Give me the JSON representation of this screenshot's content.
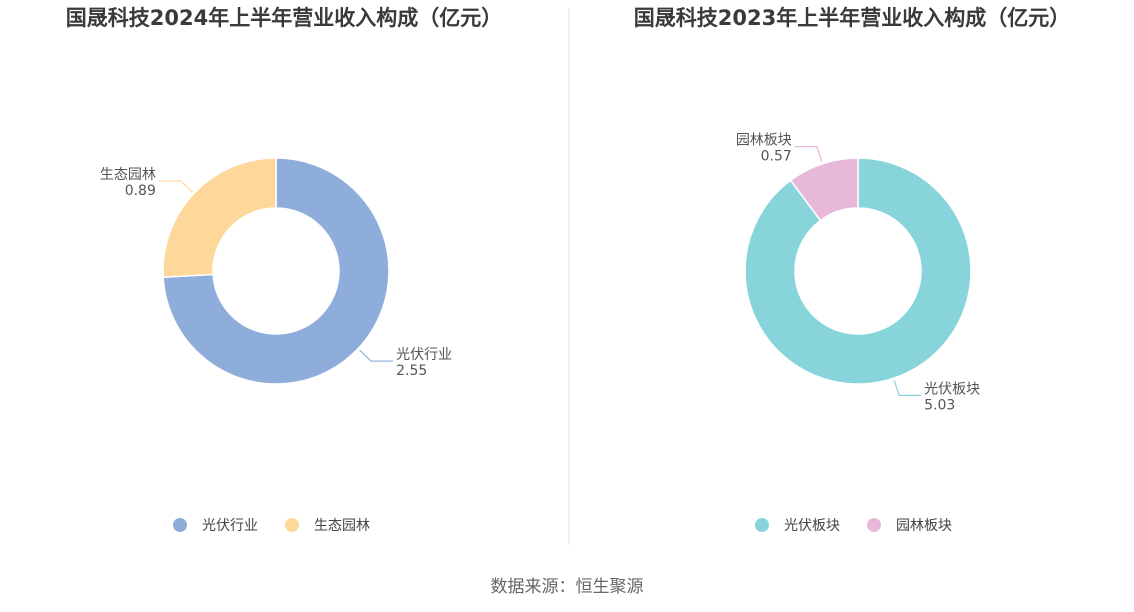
{
  "chart_data": [
    {
      "type": "pie",
      "donut": true,
      "title": "国晟科技2024年上半年营业收入构成（亿元）",
      "series": [
        {
          "name": "光伏行业",
          "value": 2.55,
          "value_label": "2.55",
          "color": "#8eadda"
        },
        {
          "name": "生态园林",
          "value": 0.89,
          "value_label": "0.89",
          "color": "#fdd89a"
        }
      ],
      "legend_position": "bottom"
    },
    {
      "type": "pie",
      "donut": true,
      "title": "国晟科技2023年上半年营业收入构成（亿元）",
      "series": [
        {
          "name": "光伏板块",
          "value": 5.03,
          "value_label": "5.03",
          "color": "#87d5db"
        },
        {
          "name": "园林板块",
          "value": 0.57,
          "value_label": "0.57",
          "color": "#e8b8d8"
        }
      ],
      "legend_position": "bottom"
    }
  ],
  "source": "数据来源：恒生聚源"
}
